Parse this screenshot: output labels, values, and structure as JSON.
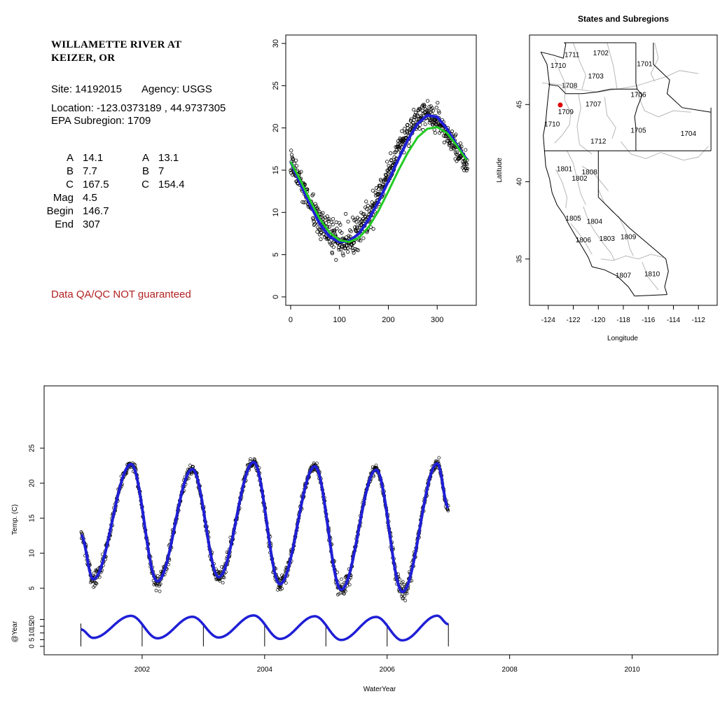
{
  "station": {
    "name_line1": "WILLAMETTE RIVER AT",
    "name_line2": "KEIZER, OR",
    "site_label": "Site: 14192015",
    "agency_label": "Agency: USGS",
    "location_label": "Location: -123.0373189 , 44.9737305",
    "subregion_label": "EPA Subregion: 1709",
    "qa_note": "Data QA/QC NOT guaranteed",
    "qa_color": "#b22222"
  },
  "params": {
    "left": [
      {
        "label": "A",
        "value": "14.1"
      },
      {
        "label": "B",
        "value": "7.7"
      },
      {
        "label": "C",
        "value": "167.5"
      },
      {
        "label": "Mag",
        "value": "4.5"
      },
      {
        "label": "Begin",
        "value": "146.7"
      },
      {
        "label": "End",
        "value": "307"
      }
    ],
    "right": [
      {
        "label": "A",
        "value": "13.1"
      },
      {
        "label": "B",
        "value": "7"
      },
      {
        "label": "C",
        "value": "154.4"
      }
    ]
  },
  "chart_data": [
    {
      "id": "doy_scatter",
      "type": "scatter",
      "title": "",
      "xlabel": "",
      "ylabel": "",
      "xlim": [
        -10,
        380
      ],
      "ylim": [
        -1,
        31
      ],
      "xticks": [
        0,
        100,
        200,
        300
      ],
      "yticks": [
        0,
        5,
        10,
        15,
        20,
        25,
        30
      ],
      "colors": {
        "points": "#000000",
        "fit_blue": "#1f1fd6",
        "fit_green": "#22cc22"
      },
      "series": [
        {
          "kind": "points",
          "x": [
            0,
            10,
            20,
            30,
            40,
            50,
            60,
            70,
            80,
            90,
            100,
            110,
            120,
            130,
            140,
            150,
            160,
            170,
            180,
            190,
            200,
            210,
            220,
            230,
            240,
            250,
            260,
            270,
            280,
            290,
            300,
            310,
            320,
            330,
            340,
            350,
            360
          ],
          "y": [
            16.0,
            14.8,
            13.5,
            12.2,
            11.0,
            9.8,
            8.8,
            8.0,
            7.3,
            6.9,
            6.7,
            6.6,
            6.7,
            7.1,
            7.7,
            8.6,
            9.6,
            10.7,
            11.9,
            13.2,
            14.6,
            16.0,
            17.3,
            18.5,
            19.5,
            20.3,
            21.0,
            21.5,
            21.6,
            21.4,
            20.9,
            20.1,
            19.2,
            18.3,
            17.4,
            16.6,
            16.0
          ]
        },
        {
          "kind": "line",
          "x": [
            0,
            20,
            40,
            60,
            80,
            100,
            120,
            140,
            160,
            180,
            200,
            220,
            240,
            260,
            280,
            300,
            320,
            340,
            360
          ],
          "y": [
            16.0,
            13.4,
            10.9,
            8.6,
            7.1,
            6.5,
            6.6,
            7.5,
            9.2,
            11.3,
            13.7,
            16.2,
            18.6,
            20.5,
            21.5,
            21.3,
            19.9,
            18.0,
            16.3
          ]
        },
        {
          "kind": "line",
          "x": [
            0,
            20,
            40,
            60,
            80,
            100,
            120,
            140,
            160,
            180,
            200,
            220,
            240,
            260,
            280,
            300,
            320,
            340,
            360
          ],
          "y": [
            16.0,
            13.8,
            11.4,
            9.2,
            7.6,
            6.7,
            6.5,
            7.0,
            8.3,
            10.2,
            12.5,
            14.9,
            17.1,
            18.9,
            19.9,
            20.1,
            19.4,
            17.9,
            16.2
          ]
        }
      ]
    },
    {
      "id": "subregion_map",
      "type": "map",
      "title": "States and Subregions",
      "xlabel": "Longitude",
      "ylabel": "Latitude",
      "xlim": [
        -125.5,
        -110.5
      ],
      "ylim": [
        32,
        49.5
      ],
      "xticks": [
        -124,
        -122,
        -120,
        -118,
        -116,
        -114,
        -112
      ],
      "yticks": [
        35,
        40,
        45
      ],
      "site": {
        "lon": -123.04,
        "lat": 44.97,
        "color": "#e00000"
      },
      "region_labels": [
        {
          "name": "1702",
          "lon": -119.8,
          "lat": 48.3
        },
        {
          "name": "1711",
          "lon": -122.1,
          "lat": 48.2
        },
        {
          "name": "1710",
          "lon": -123.2,
          "lat": 47.5
        },
        {
          "name": "1701",
          "lon": -116.3,
          "lat": 47.6
        },
        {
          "name": "1703",
          "lon": -120.2,
          "lat": 46.8
        },
        {
          "name": "1708",
          "lon": -122.3,
          "lat": 46.2
        },
        {
          "name": "1706",
          "lon": -116.8,
          "lat": 45.6
        },
        {
          "name": "1707",
          "lon": -120.4,
          "lat": 45.0
        },
        {
          "name": "1709",
          "lon": -122.6,
          "lat": 44.5
        },
        {
          "name": "1710",
          "lon": -123.7,
          "lat": 43.7
        },
        {
          "name": "1705",
          "lon": -116.8,
          "lat": 43.3
        },
        {
          "name": "1704",
          "lon": -112.8,
          "lat": 43.1
        },
        {
          "name": "1712",
          "lon": -120.0,
          "lat": 42.6
        },
        {
          "name": "1801",
          "lon": -122.7,
          "lat": 40.8
        },
        {
          "name": "1808",
          "lon": -120.7,
          "lat": 40.6
        },
        {
          "name": "1802",
          "lon": -121.5,
          "lat": 40.2
        },
        {
          "name": "1805",
          "lon": -122.0,
          "lat": 37.6
        },
        {
          "name": "1804",
          "lon": -120.3,
          "lat": 37.4
        },
        {
          "name": "1806",
          "lon": -121.2,
          "lat": 36.2
        },
        {
          "name": "1803",
          "lon": -119.3,
          "lat": 36.3
        },
        {
          "name": "1809",
          "lon": -117.6,
          "lat": 36.4
        },
        {
          "name": "1807",
          "lon": -118.0,
          "lat": 33.9
        },
        {
          "name": "1810",
          "lon": -115.7,
          "lat": 34.0
        }
      ]
    },
    {
      "id": "time_series",
      "type": "line",
      "title": "",
      "xlabel": "WaterYear",
      "ylabel": "Temp. (C)",
      "ylabel2": "@Year",
      "xlim": [
        2000.4,
        2011.4
      ],
      "ylim": [
        3,
        30
      ],
      "xticks": [
        2002,
        2004,
        2006,
        2008,
        2010
      ],
      "yticks": [
        5,
        10,
        15,
        20,
        25
      ],
      "yticks2": [
        0,
        5,
        10,
        15,
        20
      ],
      "start_year": 2001,
      "end_year": 2007,
      "annual_maxima": [
        {
          "x": 2001.82,
          "y": 22.7
        },
        {
          "x": 2002.82,
          "y": 22.0
        },
        {
          "x": 2003.82,
          "y": 23.0
        },
        {
          "x": 2004.82,
          "y": 22.4
        },
        {
          "x": 2005.82,
          "y": 21.9
        },
        {
          "x": 2006.82,
          "y": 22.8
        }
      ],
      "annual_minima": [
        {
          "x": 2001.2,
          "y": 6.3
        },
        {
          "x": 2002.25,
          "y": 6.0
        },
        {
          "x": 2003.25,
          "y": 6.6
        },
        {
          "x": 2004.25,
          "y": 5.6
        },
        {
          "x": 2005.25,
          "y": 4.8
        },
        {
          "x": 2006.25,
          "y": 4.5
        }
      ]
    }
  ]
}
